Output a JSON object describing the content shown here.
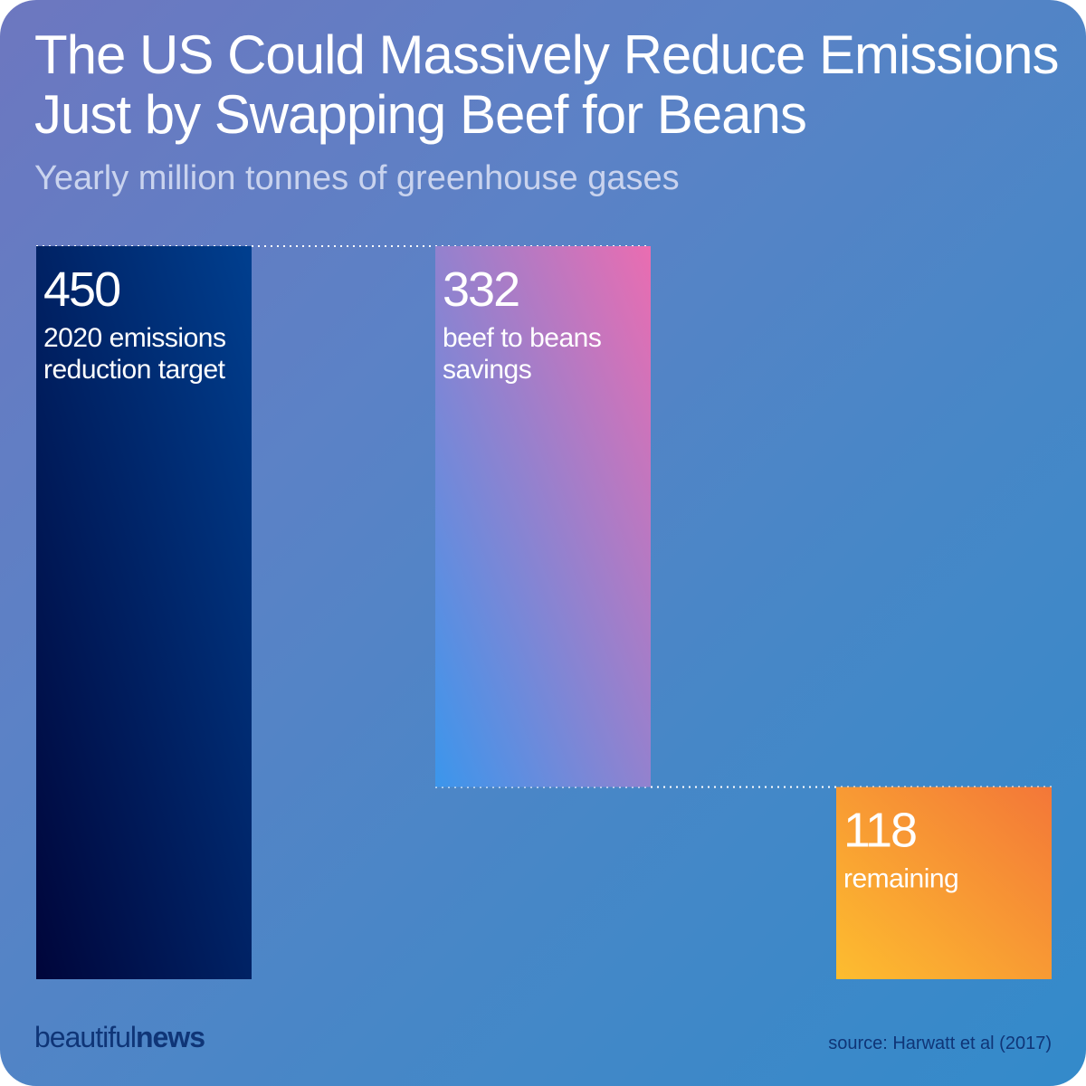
{
  "title_line1": "The US Could Massively Reduce Emissions",
  "title_line2": "Just by Swapping Beef for Beans",
  "subtitle": "Yearly million tonnes of greenhouse gases",
  "brand": {
    "part1": "beautiful",
    "part2": "news"
  },
  "source": "source: Harwatt et al (2017)",
  "chart_data": {
    "type": "bar",
    "subtype": "waterfall",
    "categories": [
      "2020 emissions reduction target",
      "beef to beans savings",
      "remaining"
    ],
    "values": [
      450,
      332,
      118
    ],
    "bars": [
      {
        "value": 450,
        "value_label": "450",
        "label_lines": [
          "2020 emissions",
          "reduction target"
        ],
        "start": 0,
        "end": 450,
        "colors": [
          "#00053a",
          "#003f8f"
        ]
      },
      {
        "value": 332,
        "value_label": "332",
        "label_lines": [
          "beef to beans",
          "savings"
        ],
        "start": 118,
        "end": 450,
        "colors": [
          "#3b96ec",
          "#ea6db1"
        ]
      },
      {
        "value": 118,
        "value_label": "118",
        "label_lines": [
          "remaining"
        ],
        "start": 0,
        "end": 118,
        "colors": [
          "#fdbd2f",
          "#f37738"
        ]
      }
    ],
    "ylim": [
      0,
      450
    ],
    "connectors": "dotted",
    "grid": false,
    "legend": "none"
  }
}
